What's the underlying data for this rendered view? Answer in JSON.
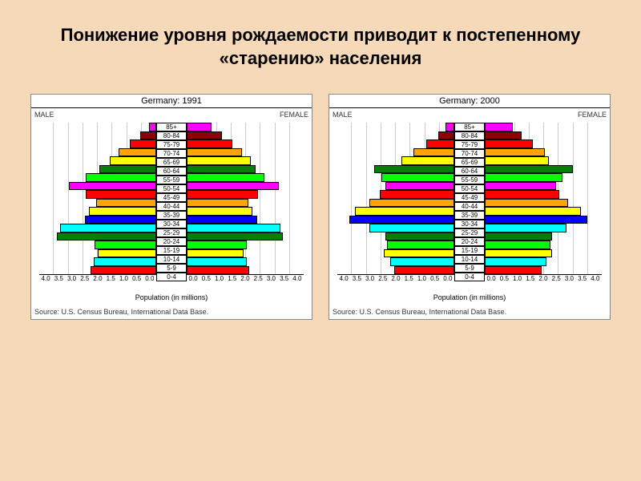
{
  "slide": {
    "title": "Понижение уровня рождаемости приводит к постепенному «старению» населения",
    "background_color": "#f5d9b8"
  },
  "axis": {
    "label": "Population (in millions)",
    "max": 4.0,
    "ticks": [
      "4.0",
      "3.5",
      "3.0",
      "2.5",
      "2.0",
      "1.5",
      "1.0",
      "0.5",
      "0.0"
    ]
  },
  "labels": {
    "male": "MALE",
    "female": "FEMALE",
    "source": "Source: U.S. Census Bureau, International Data Base."
  },
  "age_groups": [
    "85+",
    "80-84",
    "75-79",
    "70-74",
    "65-69",
    "60-64",
    "55-59",
    "50-54",
    "45-49",
    "40-44",
    "35-39",
    "30-34",
    "25-29",
    "20-24",
    "15-19",
    "10-14",
    "5-9",
    "0-4"
  ],
  "colors": [
    "#ff00ff",
    "#8b0000",
    "#ff0000",
    "#ffa500",
    "#ffff00",
    "#008000",
    "#00ff00",
    "#ff00ff",
    "#ff0000",
    "#ffa500",
    "#ffff00",
    "#0000ff",
    "#00ffff",
    "#008000",
    "#00ff00",
    "#ffff00",
    "#00ffff",
    "#ff0000"
  ],
  "charts": [
    {
      "title": "Germany: 1991",
      "male": [
        0.25,
        0.55,
        0.9,
        1.3,
        1.6,
        1.95,
        2.4,
        3.0,
        2.4,
        2.05,
        2.3,
        2.45,
        3.3,
        3.4,
        2.1,
        2.0,
        2.15,
        2.25
      ],
      "female": [
        0.85,
        1.2,
        1.55,
        1.9,
        2.2,
        2.35,
        2.65,
        3.15,
        2.45,
        2.1,
        2.25,
        2.4,
        3.2,
        3.3,
        2.05,
        1.95,
        2.05,
        2.15
      ]
    },
    {
      "title": "Germany: 2000",
      "male": [
        0.3,
        0.55,
        0.95,
        1.4,
        1.8,
        2.75,
        2.5,
        2.35,
        2.55,
        2.9,
        3.4,
        3.6,
        2.9,
        2.35,
        2.3,
        2.4,
        2.2,
        2.05
      ],
      "female": [
        0.95,
        1.25,
        1.65,
        2.05,
        2.2,
        3.0,
        2.65,
        2.45,
        2.55,
        2.85,
        3.3,
        3.5,
        2.8,
        2.3,
        2.25,
        2.3,
        2.1,
        1.95
      ]
    }
  ]
}
